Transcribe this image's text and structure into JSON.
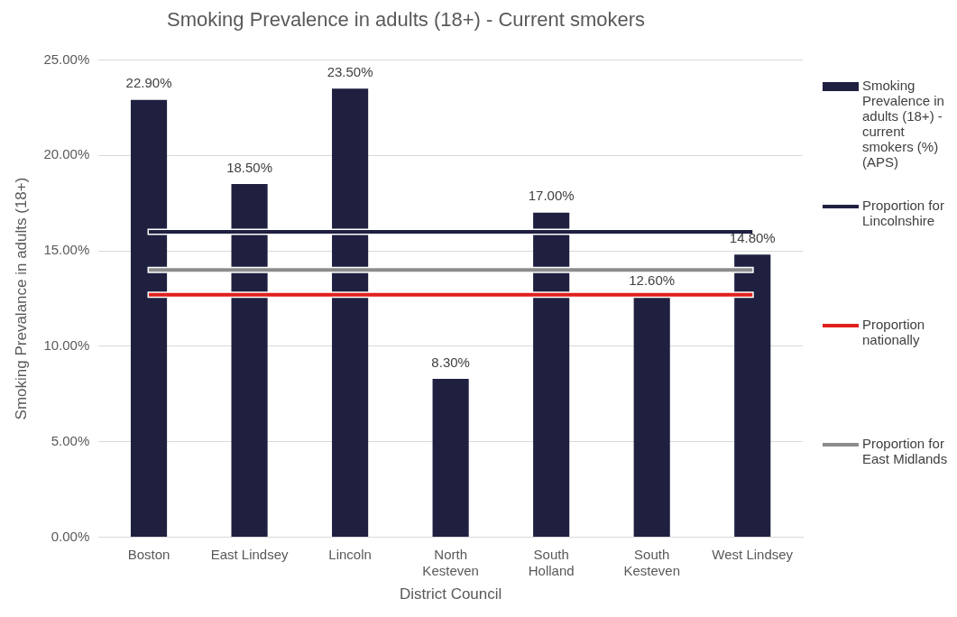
{
  "chart_data": {
    "type": "bar",
    "title": "Smoking Prevalence in adults (18+) - Current smokers",
    "xlabel": "District Council",
    "ylabel": "Smoking Prevalance in adults (18+)",
    "categories": [
      "Boston",
      "East Lindsey",
      "Lincoln",
      "North Kesteven",
      "South Holland",
      "South Kesteven",
      "West Lindsey"
    ],
    "series": [
      {
        "name": "Smoking Prevalence in adults (18+) - current smokers (%) (APS)",
        "color": "#1f2040",
        "values": [
          22.9,
          18.5,
          23.5,
          8.3,
          17.0,
          12.6,
          14.8
        ],
        "value_labels": [
          "22.90%",
          "18.50%",
          "23.50%",
          "8.30%",
          "17.00%",
          "12.60%",
          "14.80%"
        ]
      },
      {
        "name": "Proportion for Lincolnshire",
        "type": "line",
        "color": "#1f2040",
        "values": [
          16.0,
          16.0,
          16.0,
          16.0,
          16.0,
          16.0,
          16.0
        ]
      },
      {
        "name": "Proportion nationally",
        "type": "line",
        "color": "#e0201c",
        "values": [
          12.7,
          12.7,
          12.7,
          12.7,
          12.7,
          12.7,
          12.7
        ]
      },
      {
        "name": "Proportion for East Midlands",
        "type": "line",
        "color": "#8c8c8c",
        "values": [
          14.0,
          14.0,
          14.0,
          14.0,
          14.0,
          14.0,
          14.0
        ]
      }
    ],
    "ylim": [
      0,
      25
    ],
    "yticks": [
      {
        "value": 0,
        "label": "0.00%"
      },
      {
        "value": 5,
        "label": "5.00%"
      },
      {
        "value": 10,
        "label": "10.00%"
      },
      {
        "value": 15,
        "label": "15.00%"
      },
      {
        "value": 20,
        "label": "20.00%"
      },
      {
        "value": 25,
        "label": "25.00%"
      }
    ],
    "grid": "y",
    "legend": "right",
    "marker": "none",
    "line_style": "solid"
  }
}
